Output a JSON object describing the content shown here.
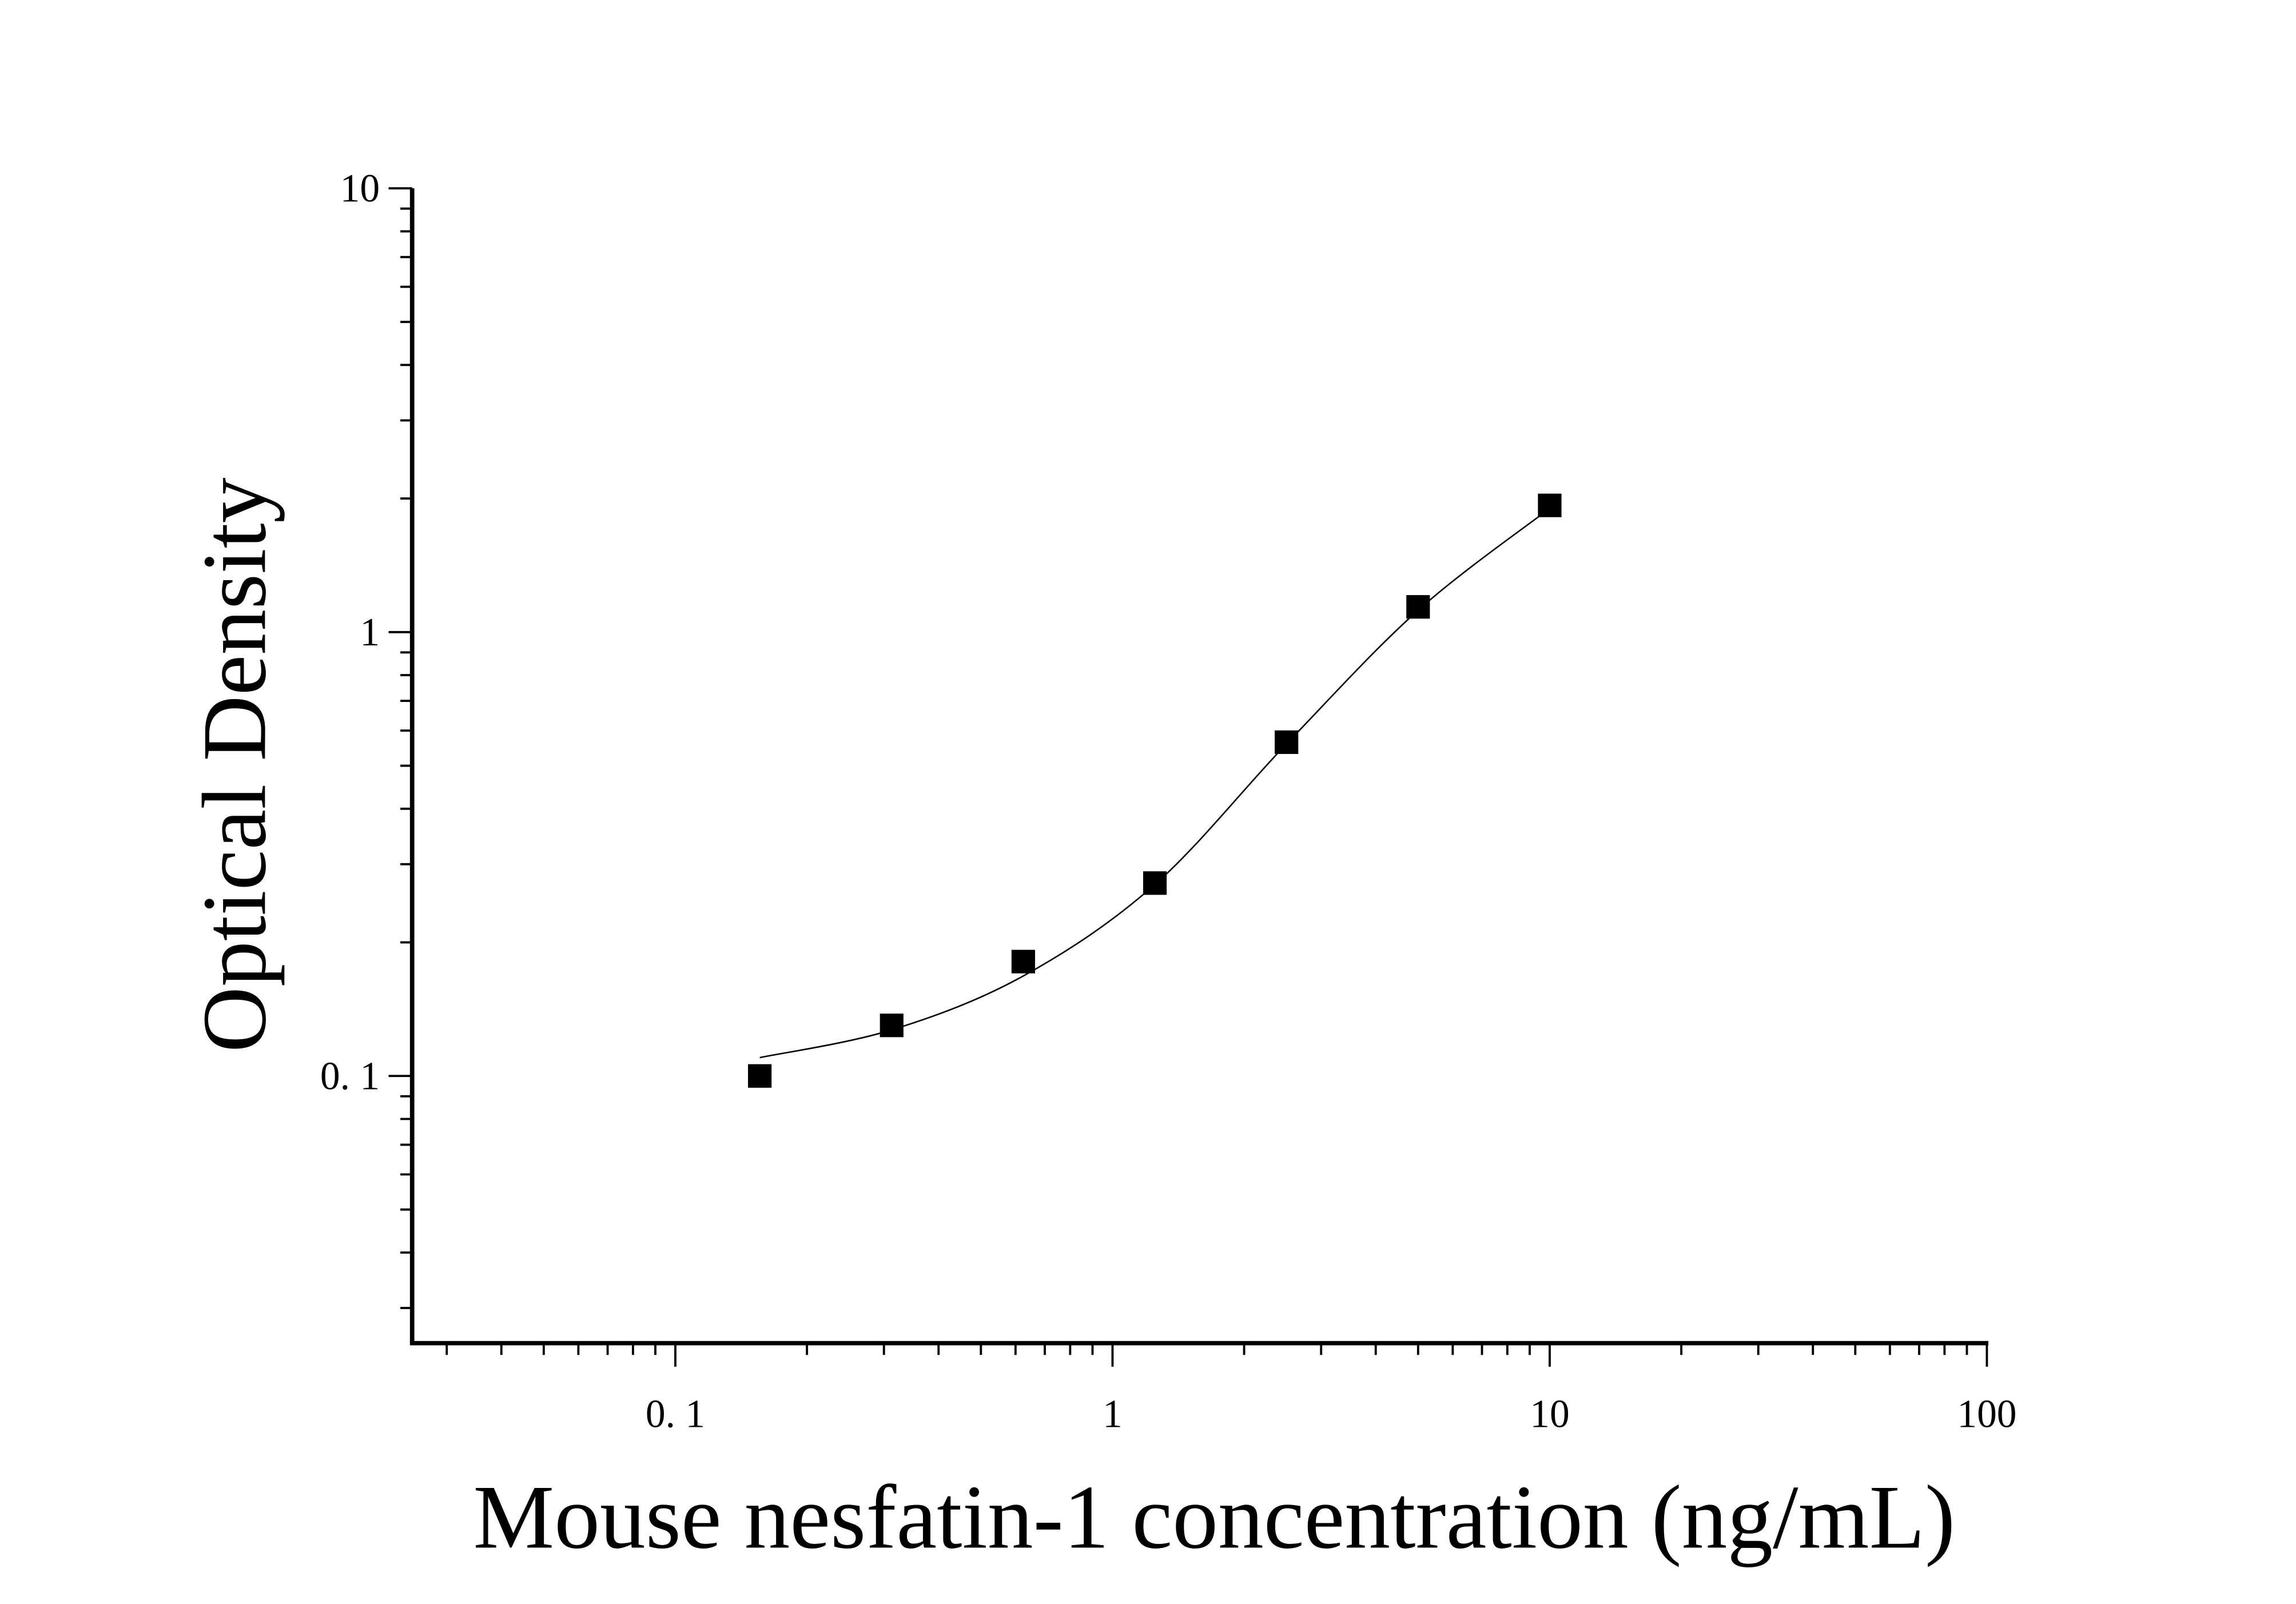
{
  "chart_data": {
    "type": "scatter",
    "title": "",
    "xlabel": "Mouse nesfatin-1 concentration (ng/mL)",
    "ylabel": "Optical Density",
    "x_scale": "log",
    "y_scale": "log",
    "xlim": [
      0.025,
      100
    ],
    "ylim": [
      0.025,
      10
    ],
    "x_ticks": [
      {
        "value": 0.1,
        "label": "0. 1"
      },
      {
        "value": 1,
        "label": "1"
      },
      {
        "value": 10,
        "label": "10"
      },
      {
        "value": 100,
        "label": "100"
      }
    ],
    "y_ticks": [
      {
        "value": 0.1,
        "label": "0. 1"
      },
      {
        "value": 1,
        "label": "1"
      },
      {
        "value": 10,
        "label": "10"
      }
    ],
    "grid": false,
    "marker": "square",
    "marker_color": "#000000",
    "fit_line": "4-parameter logistic curve",
    "series": [
      {
        "x": [
          0.156,
          0.3125,
          0.625,
          1.25,
          2.5,
          5,
          10
        ],
        "y": [
          0.1,
          0.13,
          0.181,
          0.272,
          0.565,
          1.14,
          1.93
        ]
      }
    ]
  }
}
